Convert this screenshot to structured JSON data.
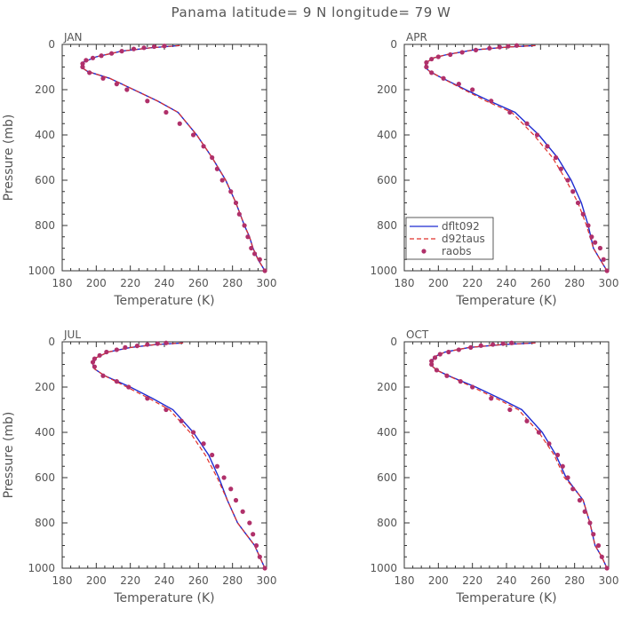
{
  "title": "Panama  latitude= 9 N longitude= 79 W",
  "colors": {
    "dflt092": "#1f2bd0",
    "d92taus": "#e0302a",
    "raobs": "#b0306a",
    "axis": "#333333",
    "text": "#555555"
  },
  "chart_data": [
    {
      "type": "line",
      "label": "JAN",
      "xlabel": "Temperature (K)",
      "ylabel": "Pressure (mb)",
      "xlim": [
        180,
        300
      ],
      "ylim": [
        1000,
        0
      ],
      "xticks": [
        180,
        200,
        220,
        240,
        260,
        280,
        300
      ],
      "yticks": [
        0,
        200,
        400,
        600,
        800,
        1000
      ],
      "legend": false,
      "series": [
        {
          "name": "dflt092",
          "style": "solid",
          "x": [
            249,
            232,
            215,
            200,
            192,
            191,
            195,
            208,
            222,
            236,
            248,
            259,
            268,
            276,
            282,
            287,
            290,
            292,
            295,
            299
          ],
          "p": [
            5,
            15,
            30,
            55,
            80,
            100,
            120,
            150,
            200,
            250,
            300,
            400,
            500,
            600,
            700,
            800,
            850,
            900,
            950,
            1000
          ]
        },
        {
          "name": "d92taus",
          "style": "dashed",
          "x": [
            249,
            232,
            215,
            200,
            192,
            191,
            195,
            208,
            222,
            236,
            248,
            259,
            268,
            276,
            282,
            287,
            290,
            292,
            295,
            299
          ],
          "p": [
            5,
            15,
            30,
            55,
            80,
            100,
            120,
            150,
            200,
            250,
            300,
            400,
            500,
            600,
            700,
            800,
            850,
            900,
            950,
            1000
          ]
        },
        {
          "name": "raobs",
          "style": "points",
          "x": [
            240,
            234,
            228,
            222,
            215,
            209,
            203,
            198,
            194,
            192,
            192,
            196,
            204,
            212,
            218,
            230,
            241,
            249,
            257,
            263,
            268,
            271,
            274,
            279,
            282,
            284,
            287,
            289,
            291,
            293,
            296,
            299
          ],
          "p": [
            7,
            10,
            15,
            20,
            30,
            40,
            50,
            60,
            70,
            85,
            100,
            125,
            150,
            175,
            200,
            250,
            300,
            350,
            400,
            450,
            500,
            550,
            600,
            650,
            700,
            750,
            800,
            850,
            900,
            925,
            950,
            1000
          ]
        }
      ]
    },
    {
      "type": "line",
      "label": "APR",
      "xlabel": "Temperature (K)",
      "ylabel": "",
      "xlim": [
        180,
        300
      ],
      "ylim": [
        1000,
        0
      ],
      "xticks": [
        180,
        200,
        220,
        240,
        260,
        280,
        300
      ],
      "yticks": [
        0,
        200,
        400,
        600,
        800,
        1000
      ],
      "legend": true,
      "series": [
        {
          "name": "dflt092",
          "style": "solid",
          "x": [
            257,
            240,
            220,
            205,
            197,
            193,
            192,
            195,
            200,
            216,
            230,
            245,
            259,
            270,
            278,
            284,
            288,
            291,
            295,
            299
          ],
          "p": [
            5,
            12,
            25,
            45,
            60,
            80,
            100,
            120,
            140,
            200,
            250,
            300,
            400,
            500,
            600,
            700,
            800,
            900,
            950,
            1000
          ]
        },
        {
          "name": "d92taus",
          "style": "dashed",
          "x": [
            257,
            240,
            220,
            205,
            197,
            193,
            192,
            195,
            200,
            215,
            228,
            243,
            256,
            267,
            275,
            282,
            287,
            291,
            295,
            299
          ],
          "p": [
            5,
            12,
            25,
            45,
            60,
            80,
            100,
            120,
            140,
            200,
            250,
            300,
            400,
            500,
            600,
            700,
            800,
            900,
            950,
            1000
          ]
        },
        {
          "name": "raobs",
          "style": "points",
          "x": [
            246,
            241,
            236,
            230,
            222,
            214,
            207,
            200,
            196,
            193,
            193,
            196,
            203,
            212,
            220,
            231,
            242,
            252,
            258,
            264,
            269,
            272,
            276,
            279,
            282,
            285,
            288,
            290,
            292,
            295,
            297,
            299
          ],
          "p": [
            5,
            8,
            12,
            17,
            25,
            35,
            45,
            55,
            65,
            80,
            100,
            125,
            150,
            175,
            200,
            250,
            300,
            350,
            400,
            450,
            500,
            550,
            600,
            650,
            700,
            750,
            800,
            850,
            875,
            900,
            950,
            1000
          ]
        }
      ]
    },
    {
      "type": "line",
      "label": "JUL",
      "xlabel": "Temperature (K)",
      "ylabel": "Pressure (mb)",
      "xlim": [
        180,
        300
      ],
      "ylim": [
        1000,
        0
      ],
      "xticks": [
        180,
        200,
        220,
        240,
        260,
        280,
        300
      ],
      "yticks": [
        0,
        200,
        400,
        600,
        800,
        1000
      ],
      "legend": false,
      "series": [
        {
          "name": "dflt092",
          "style": "solid",
          "x": [
            251,
            235,
            220,
            207,
            200,
            198,
            199,
            205,
            220,
            233,
            245,
            257,
            266,
            272,
            277,
            283,
            288,
            293,
            296,
            299
          ],
          "p": [
            5,
            12,
            25,
            45,
            70,
            100,
            120,
            150,
            200,
            250,
            300,
            400,
            500,
            600,
            700,
            800,
            850,
            900,
            950,
            1000
          ]
        },
        {
          "name": "d92taus",
          "style": "dashed",
          "x": [
            251,
            235,
            220,
            207,
            200,
            198,
            199,
            205,
            218,
            231,
            243,
            255,
            264,
            271,
            277,
            283,
            288,
            293,
            296,
            299
          ],
          "p": [
            5,
            12,
            25,
            45,
            70,
            100,
            120,
            150,
            200,
            250,
            300,
            400,
            500,
            600,
            700,
            800,
            850,
            900,
            950,
            1000
          ]
        },
        {
          "name": "raobs",
          "style": "points",
          "x": [
            241,
            236,
            230,
            224,
            217,
            212,
            206,
            202,
            199,
            198,
            199,
            204,
            212,
            219,
            230,
            241,
            250,
            257,
            263,
            268,
            271,
            275,
            279,
            282,
            286,
            290,
            292,
            294,
            296,
            299
          ],
          "p": [
            5,
            8,
            12,
            18,
            25,
            35,
            45,
            60,
            75,
            90,
            110,
            150,
            175,
            200,
            250,
            300,
            350,
            400,
            450,
            500,
            550,
            600,
            650,
            700,
            750,
            800,
            850,
            900,
            950,
            1000
          ]
        }
      ]
    },
    {
      "type": "line",
      "label": "OCT",
      "xlabel": "Temperature (K)",
      "ylabel": "",
      "xlim": [
        180,
        300
      ],
      "ylim": [
        1000,
        0
      ],
      "xticks": [
        180,
        200,
        220,
        240,
        260,
        280,
        300
      ],
      "yticks": [
        0,
        200,
        400,
        600,
        800,
        1000
      ],
      "legend": false,
      "series": [
        {
          "name": "dflt092",
          "style": "solid",
          "x": [
            257,
            238,
            218,
            204,
            198,
            196,
            196,
            199,
            206,
            222,
            236,
            249,
            261,
            269,
            275,
            280,
            285,
            289,
            292,
            296,
            299
          ],
          "p": [
            5,
            12,
            25,
            45,
            65,
            85,
            105,
            125,
            150,
            200,
            250,
            300,
            400,
            500,
            600,
            650,
            700,
            800,
            900,
            950,
            1000
          ]
        },
        {
          "name": "d92taus",
          "style": "dashed",
          "x": [
            257,
            238,
            218,
            204,
            198,
            196,
            196,
            199,
            206,
            220,
            234,
            247,
            259,
            268,
            274,
            280,
            285,
            289,
            292,
            296,
            299
          ],
          "p": [
            5,
            12,
            25,
            45,
            65,
            85,
            105,
            125,
            150,
            200,
            250,
            300,
            400,
            500,
            600,
            650,
            700,
            800,
            900,
            950,
            1000
          ]
        },
        {
          "name": "raobs",
          "style": "points",
          "x": [
            243,
            238,
            232,
            225,
            219,
            212,
            206,
            201,
            198,
            196,
            196,
            199,
            205,
            213,
            220,
            231,
            242,
            252,
            259,
            265,
            270,
            273,
            276,
            279,
            283,
            286,
            289,
            291,
            294,
            296,
            299
          ],
          "p": [
            5,
            8,
            12,
            17,
            25,
            35,
            45,
            55,
            70,
            85,
            100,
            125,
            150,
            175,
            200,
            250,
            300,
            350,
            400,
            450,
            500,
            550,
            600,
            650,
            700,
            750,
            800,
            850,
            900,
            950,
            1000
          ]
        }
      ]
    }
  ]
}
